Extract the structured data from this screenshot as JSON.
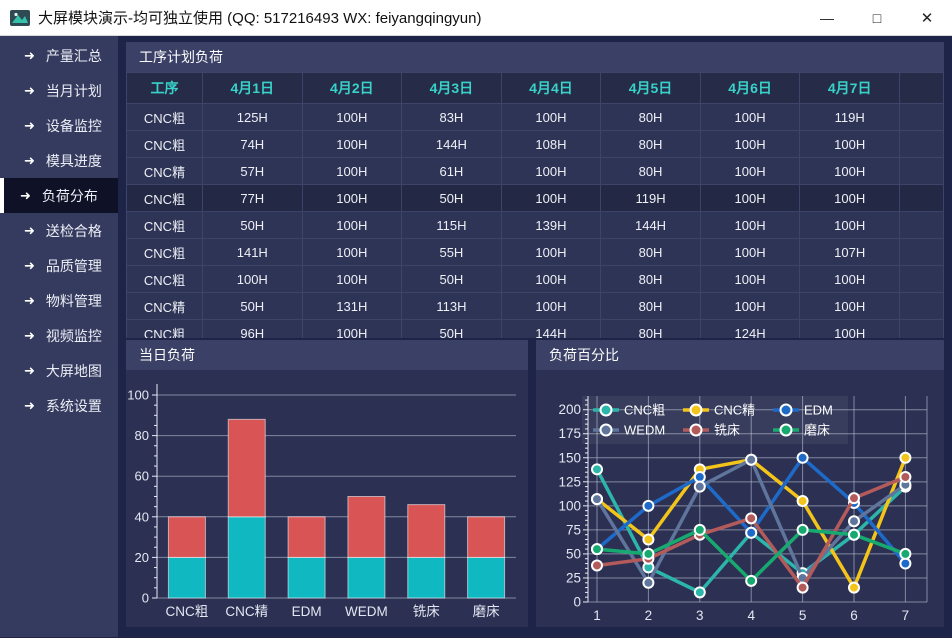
{
  "window": {
    "title": "大屏模块演示-均可独立使用 (QQ: 517216493  WX: feiyangqingyun)",
    "controls": {
      "minimize": "—",
      "maximize": "□",
      "close": "✕"
    }
  },
  "sidebar": {
    "items": [
      {
        "label": "产量汇总",
        "active": false
      },
      {
        "label": "当月计划",
        "active": false
      },
      {
        "label": "设备监控",
        "active": false
      },
      {
        "label": "模具进度",
        "active": false
      },
      {
        "label": "负荷分布",
        "active": true
      },
      {
        "label": "送检合格",
        "active": false
      },
      {
        "label": "品质管理",
        "active": false
      },
      {
        "label": "物料管理",
        "active": false
      },
      {
        "label": "视频监控",
        "active": false
      },
      {
        "label": "大屏地图",
        "active": false
      },
      {
        "label": "系统设置",
        "active": false
      }
    ]
  },
  "table_panel": {
    "title": "工序计划负荷",
    "columns": [
      "工序",
      "4月1日",
      "4月2日",
      "4月3日",
      "4月4日",
      "4月5日",
      "4月6日",
      "4月7日",
      ""
    ],
    "rows": [
      {
        "selected": false,
        "cells": [
          "CNC粗",
          "125H",
          "100H",
          "83H",
          "100H",
          "80H",
          "100H",
          "119H",
          ""
        ]
      },
      {
        "selected": false,
        "cells": [
          "CNC粗",
          "74H",
          "100H",
          "144H",
          "108H",
          "80H",
          "100H",
          "100H",
          ""
        ]
      },
      {
        "selected": false,
        "cells": [
          "CNC精",
          "57H",
          "100H",
          "61H",
          "100H",
          "80H",
          "100H",
          "100H",
          ""
        ]
      },
      {
        "selected": true,
        "cells": [
          "CNC粗",
          "77H",
          "100H",
          "50H",
          "100H",
          "119H",
          "100H",
          "100H",
          ""
        ]
      },
      {
        "selected": false,
        "cells": [
          "CNC粗",
          "50H",
          "100H",
          "115H",
          "139H",
          "144H",
          "100H",
          "100H",
          ""
        ]
      },
      {
        "selected": false,
        "cells": [
          "CNC粗",
          "141H",
          "100H",
          "55H",
          "100H",
          "80H",
          "100H",
          "107H",
          ""
        ]
      },
      {
        "selected": false,
        "cells": [
          "CNC粗",
          "100H",
          "100H",
          "50H",
          "100H",
          "80H",
          "100H",
          "100H",
          ""
        ]
      },
      {
        "selected": false,
        "cells": [
          "CNC精",
          "50H",
          "131H",
          "113H",
          "100H",
          "80H",
          "100H",
          "100H",
          ""
        ]
      },
      {
        "selected": false,
        "cells": [
          "CNC粗",
          "96H",
          "100H",
          "50H",
          "144H",
          "80H",
          "124H",
          "100H",
          ""
        ]
      }
    ]
  },
  "bar_panel": {
    "title": "当日负荷"
  },
  "line_panel": {
    "title": "负荷百分比"
  },
  "chart_data": [
    {
      "type": "bar",
      "title": "当日负荷",
      "stacked": true,
      "categories": [
        "CNC粗",
        "CNC精",
        "EDM",
        "WEDM",
        "铣床",
        "磨床"
      ],
      "series": [
        {
          "color": "#10b9c2",
          "values": [
            20,
            40,
            20,
            20,
            20,
            20
          ]
        },
        {
          "color": "#d95555",
          "values": [
            20,
            48,
            20,
            30,
            26,
            20
          ]
        }
      ],
      "ylim": [
        0,
        100
      ],
      "ytick": 20,
      "grid": "horizontal",
      "legend": "none"
    },
    {
      "type": "line",
      "title": "负荷百分比",
      "x": [
        1,
        2,
        3,
        4,
        5,
        6,
        7
      ],
      "series": [
        {
          "name": "CNC粗",
          "color": "#2bb5ab",
          "values": [
            138,
            36,
            10,
            72,
            30,
            70,
            120
          ]
        },
        {
          "name": "CNC精",
          "color": "#f3c41a",
          "values": [
            107,
            65,
            138,
            148,
            105,
            15,
            150
          ]
        },
        {
          "name": "EDM",
          "color": "#1e6ac9",
          "values": [
            55,
            100,
            130,
            72,
            150,
            103,
            40
          ]
        },
        {
          "name": "WEDM",
          "color": "#5f759c",
          "values": [
            107,
            20,
            120,
            148,
            25,
            84,
            122
          ]
        },
        {
          "name": "铣床",
          "color": "#b35b5b",
          "values": [
            38,
            45,
            70,
            87,
            15,
            108,
            130
          ]
        },
        {
          "name": "磨床",
          "color": "#17aa70",
          "values": [
            55,
            50,
            75,
            22,
            75,
            70,
            50
          ]
        }
      ],
      "ylim": [
        0,
        200
      ],
      "ytick": 25,
      "grid": "both",
      "legend": "top-left, 2 rows x 3 cols"
    }
  ]
}
